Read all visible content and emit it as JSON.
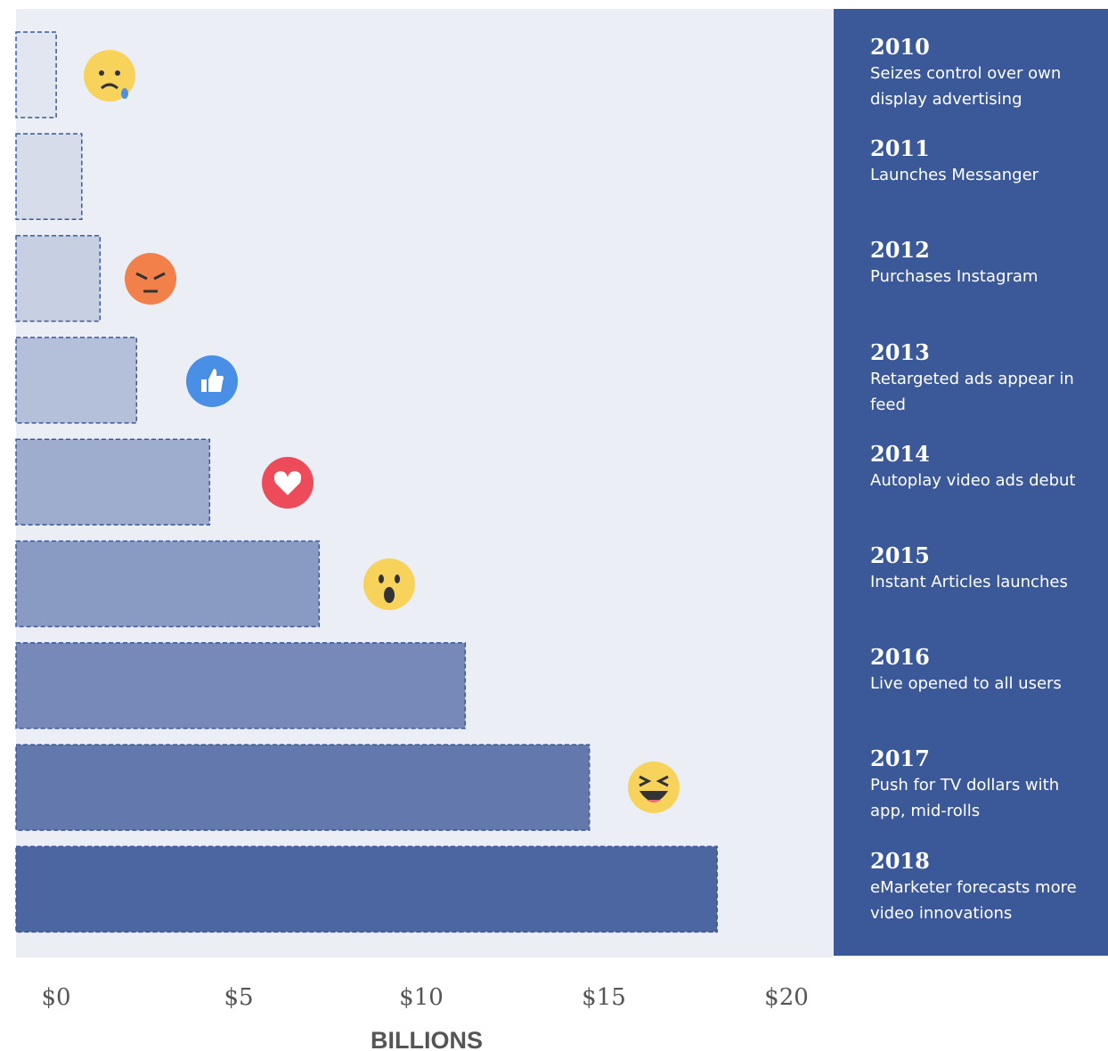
{
  "chart_data": {
    "type": "barh",
    "categories": [
      "2010",
      "2011",
      "2012",
      "2013",
      "2014",
      "2015",
      "2016",
      "2017",
      "2018"
    ],
    "values": [
      1.1,
      1.8,
      2.3,
      3.3,
      5.3,
      8.3,
      12.3,
      15.7,
      19.2
    ],
    "colors": [
      "#e2e6f0",
      "#d6dcea",
      "#c7cfe2",
      "#b4c0da",
      "#9eaccd",
      "#8a9bc3",
      "#7689b8",
      "#6378ad",
      "#4b66a0"
    ],
    "annotations": [
      "Seizes control over own display advertising",
      "Launches Messanger",
      "Purchases Instagram",
      "Retargeted ads appear in feed",
      "Autoplay video ads debut",
      "Instant Articles launches",
      "Live opened to all users",
      "Push for TV dollars with app, mid-rolls",
      "eMarketer forecasts more video innovations"
    ],
    "xlabel": "BILLIONS",
    "xlim": [
      0,
      22
    ],
    "xticks": [
      {
        "value": 0,
        "label": "$0"
      },
      {
        "value": 5,
        "label": "$5"
      },
      {
        "value": 10,
        "label": "$10"
      },
      {
        "value": 15,
        "label": "$15"
      },
      {
        "value": 20,
        "label": "$20"
      }
    ]
  }
}
